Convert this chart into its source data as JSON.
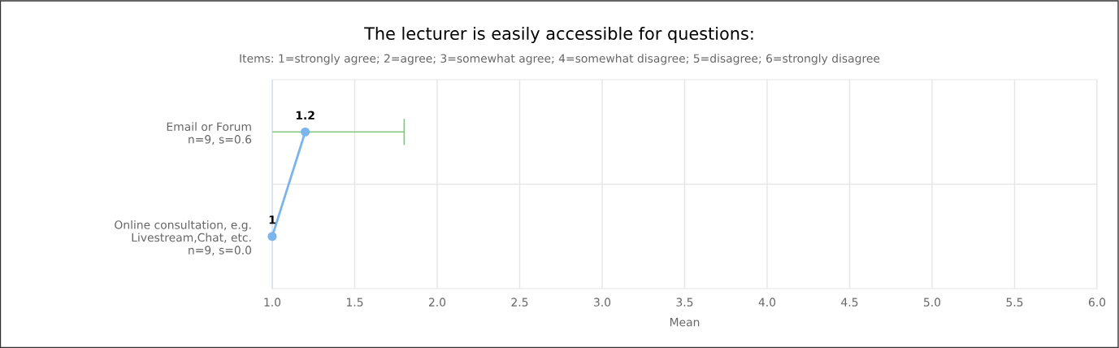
{
  "chart_data": {
    "type": "line",
    "orientation": "horizontal",
    "title": "The lecturer is easily accessible for questions:",
    "subtitle": "Items: 1=strongly agree; 2=agree; 3=somewhat agree; 4=somewhat disagree; 5=disagree; 6=strongly disagree",
    "xlabel": "Mean",
    "categories": [
      "Email or Forum\nn=9, s=0.6",
      "Online consultation, e.g.\nLivestream,Chat, etc.\nn=9, s=0.0"
    ],
    "series": [
      {
        "color": "#7cb5ec",
        "values": [
          1.2,
          1
        ],
        "errors": [
          [
            1.0,
            1.8
          ],
          null
        ]
      }
    ],
    "xlim": [
      1,
      6
    ],
    "xticks": [
      {
        "value": 1,
        "label": "1.0"
      },
      {
        "value": 1.5,
        "label": "1.5"
      },
      {
        "value": 2,
        "label": "2.0"
      },
      {
        "value": 2.5,
        "label": "2.5"
      },
      {
        "value": 3,
        "label": "3.0"
      },
      {
        "value": 3.5,
        "label": "3.5"
      },
      {
        "value": 4,
        "label": "4.0"
      },
      {
        "value": 4.5,
        "label": "4.5"
      },
      {
        "value": 5,
        "label": "5.0"
      },
      {
        "value": 5.5,
        "label": "5.5"
      },
      {
        "value": 6,
        "label": "6.0"
      }
    ],
    "grid": true,
    "legend": false,
    "marker": "circle",
    "line_style": "solid",
    "data_labels": true
  }
}
